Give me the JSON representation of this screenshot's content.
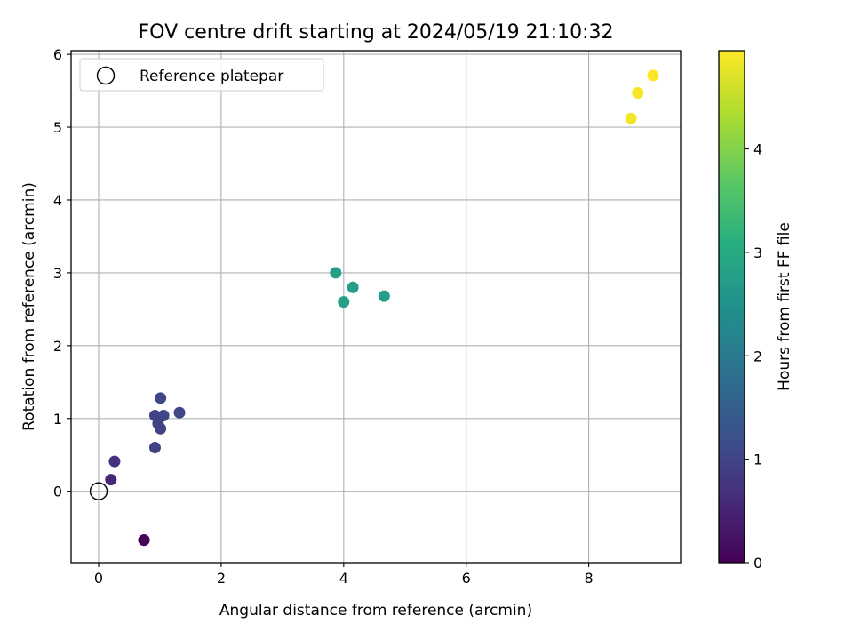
{
  "chart_data": {
    "type": "scatter",
    "title": "FOV centre drift starting at 2024/05/19 21:10:32",
    "xlabel": "Angular distance from reference (arcmin)",
    "ylabel": "Rotation from reference (arcmin)",
    "xlim": [
      -0.45,
      9.5
    ],
    "ylim": [
      -0.98,
      6.05
    ],
    "xticks": [
      0,
      2,
      4,
      6,
      8
    ],
    "yticks": [
      0,
      1,
      2,
      3,
      4,
      5,
      6
    ],
    "grid": true,
    "legend": {
      "placement": "top-left",
      "entries": [
        "Reference platepar"
      ]
    },
    "reference_point": {
      "x": 0,
      "y": 0,
      "label": "Reference platepar"
    },
    "colorbar": {
      "label": "Hours from first FF file",
      "colormap": "viridis",
      "range": [
        0,
        4.95
      ],
      "ticks": [
        0,
        1,
        2,
        3,
        4
      ]
    },
    "points": [
      {
        "x": 0.74,
        "y": -0.67,
        "hours": 0.0
      },
      {
        "x": 0.74,
        "y": -0.67,
        "hours": 0.05
      },
      {
        "x": 0.2,
        "y": 0.16,
        "hours": 0.55
      },
      {
        "x": 0.26,
        "y": 0.41,
        "hours": 0.65
      },
      {
        "x": 0.92,
        "y": 0.6,
        "hours": 0.95
      },
      {
        "x": 0.92,
        "y": 1.04,
        "hours": 1.0
      },
      {
        "x": 0.97,
        "y": 0.93,
        "hours": 1.0
      },
      {
        "x": 1.01,
        "y": 0.86,
        "hours": 1.0
      },
      {
        "x": 1.06,
        "y": 1.04,
        "hours": 1.05
      },
      {
        "x": 1.01,
        "y": 1.28,
        "hours": 1.05
      },
      {
        "x": 1.32,
        "y": 1.08,
        "hours": 1.05
      },
      {
        "x": 3.87,
        "y": 3.0,
        "hours": 2.75
      },
      {
        "x": 4.0,
        "y": 2.6,
        "hours": 2.75
      },
      {
        "x": 4.15,
        "y": 2.8,
        "hours": 2.75
      },
      {
        "x": 4.66,
        "y": 2.68,
        "hours": 2.75
      },
      {
        "x": 8.69,
        "y": 5.12,
        "hours": 4.85
      },
      {
        "x": 8.8,
        "y": 5.47,
        "hours": 4.9
      },
      {
        "x": 9.05,
        "y": 5.71,
        "hours": 4.95
      }
    ]
  }
}
